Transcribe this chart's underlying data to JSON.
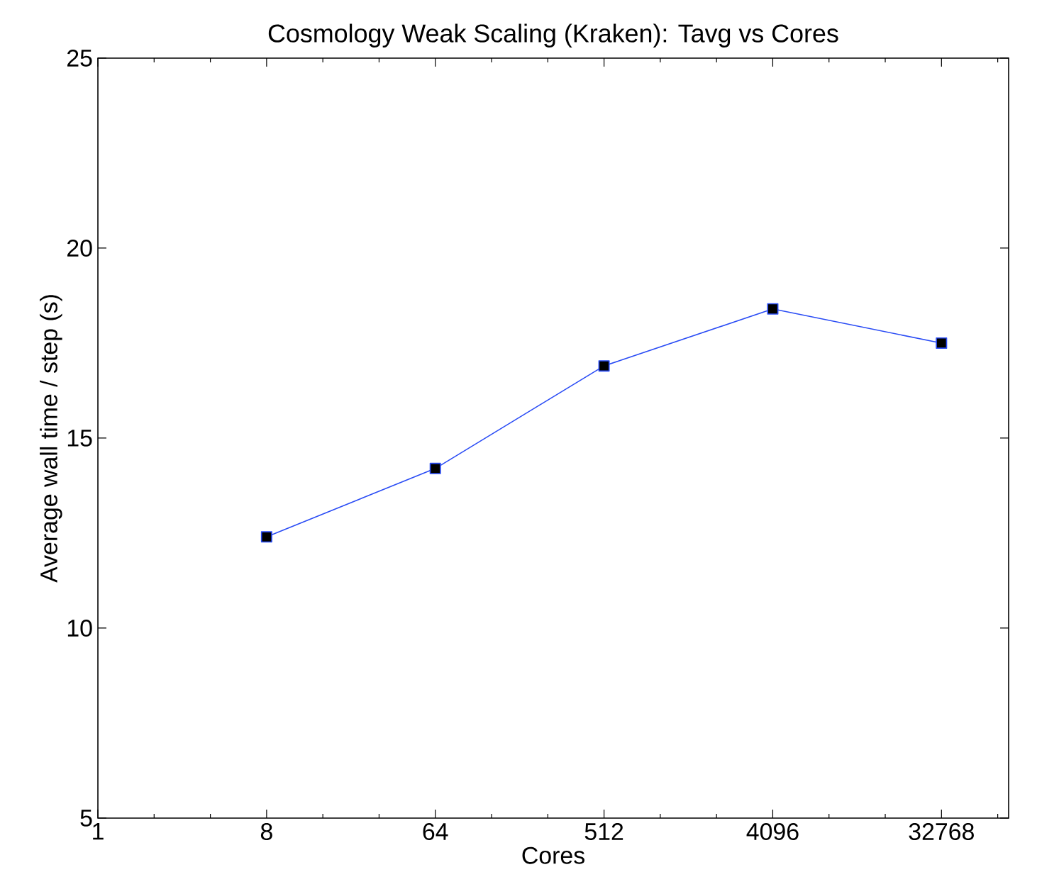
{
  "chart_data": {
    "type": "line",
    "title": "Cosmology Weak Scaling (Kraken): Tavg vs Cores",
    "xlabel": "Cores",
    "ylabel": "Average wall time / step (s)",
    "x": [
      8,
      64,
      512,
      4096,
      32768
    ],
    "series": [
      {
        "color": "#2a4cf5",
        "values": [
          12.4,
          14.2,
          16.9,
          18.4,
          17.5
        ]
      }
    ],
    "log": "x",
    "marker": "square",
    "line_style": "solid",
    "grid": false,
    "xlim": [
      1,
      75000
    ],
    "xticks": [
      1,
      8,
      64,
      512,
      4096,
      32768
    ],
    "ylim": [
      5,
      25
    ],
    "yticks": [
      5,
      10,
      15,
      20,
      25
    ]
  }
}
